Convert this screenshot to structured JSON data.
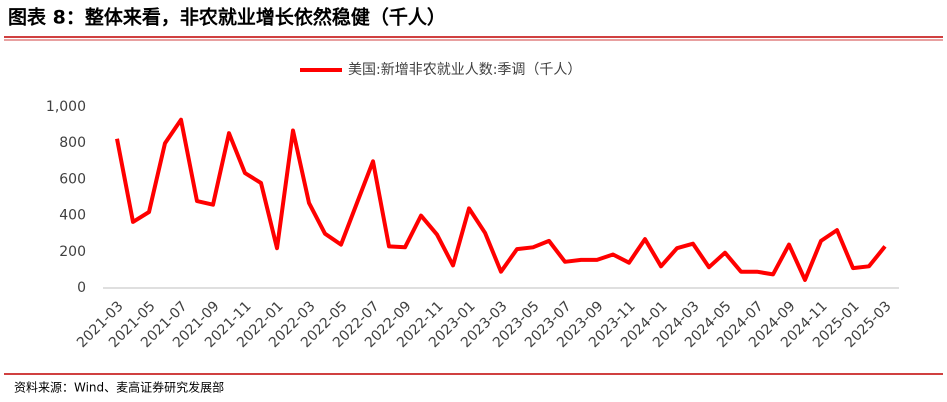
{
  "header": {
    "title": "图表 8：整体来看，非农就业增长依然稳健（千人）"
  },
  "footer": {
    "source": "资料来源：Wind、麦高证券研究发展部"
  },
  "chart_data": {
    "type": "line",
    "categories": [
      "2021-03",
      null,
      "2021-05",
      null,
      "2021-07",
      null,
      "2021-09",
      null,
      "2021-11",
      null,
      "2022-01",
      null,
      "2022-03",
      null,
      "2022-05",
      null,
      "2022-07",
      null,
      "2022-09",
      null,
      "2022-11",
      null,
      "2023-01",
      null,
      "2023-03",
      null,
      "2023-05",
      null,
      "2023-07",
      null,
      "2023-09",
      null,
      "2023-11",
      null,
      "2024-01",
      null,
      "2024-03",
      null,
      "2024-05",
      null,
      "2024-07",
      null,
      "2024-09",
      null,
      "2024-11",
      null,
      "2025-01",
      null,
      "2025-03"
    ],
    "series": [
      {
        "name": "美国:新增非农就业人数:季调（千人）",
        "color": "#ff0000",
        "values": [
          825,
          365,
          420,
          800,
          930,
          480,
          460,
          855,
          635,
          580,
          220,
          870,
          470,
          300,
          240,
          470,
          700,
          230,
          225,
          400,
          295,
          125,
          440,
          305,
          90,
          215,
          225,
          260,
          145,
          155,
          155,
          185,
          140,
          270,
          120,
          220,
          245,
          115,
          195,
          90,
          90,
          75,
          240,
          45,
          260,
          320,
          110,
          120,
          230
        ]
      }
    ],
    "ylim": [
      0,
      1000
    ],
    "yticks": [
      0,
      200,
      400,
      600,
      800,
      {
        "value": 1000,
        "label": "1,000"
      }
    ],
    "legend": "top"
  }
}
